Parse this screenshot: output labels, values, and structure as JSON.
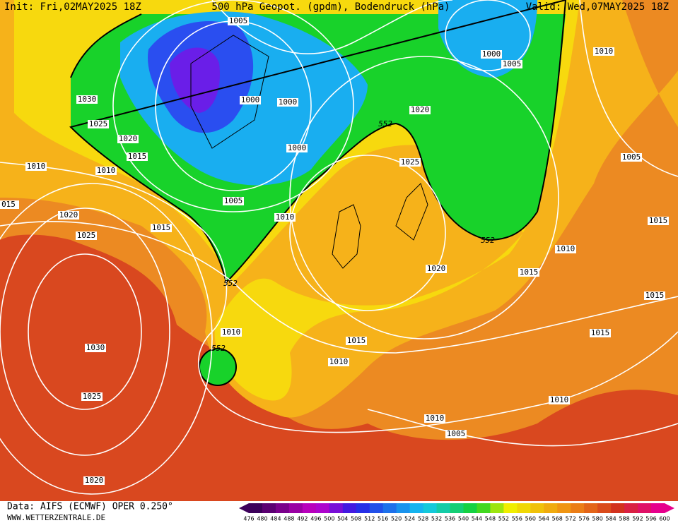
{
  "header": {
    "init": "Init: Fri,02MAY2025 18Z",
    "title": "500 hPa Geopot. (gpdm), Bodendruck (hPa)",
    "valid": "Valid: Wed,07MAY2025 18Z"
  },
  "isobar_labels": [
    "1005",
    "1000",
    "1005",
    "1010",
    "1030",
    "1000",
    "1000",
    "1020",
    "1025",
    "1020",
    "1000",
    "1015",
    "1005",
    "1010",
    "1010",
    "1025",
    "015",
    "1005",
    "1020",
    "1010",
    "1015",
    "1015",
    "1025",
    "1010",
    "1020",
    "1015",
    "1015",
    "1010",
    "1015",
    "1015",
    "1030",
    "1010",
    "1010",
    "1025",
    "1010",
    "1005",
    "1020"
  ],
  "contour_labels": [
    "552",
    "552",
    "552",
    "552"
  ],
  "colorbar": {
    "labels": [
      476,
      480,
      484,
      488,
      492,
      496,
      500,
      504,
      508,
      512,
      516,
      520,
      524,
      528,
      532,
      536,
      540,
      544,
      548,
      552,
      556,
      560,
      564,
      568,
      572,
      576,
      580,
      584,
      588,
      592,
      596,
      600
    ]
  },
  "footer": {
    "source": "Data: AIFS (ECMWF) OPER 0.250°",
    "site": "WWW.WETTERZENTRALE.DE"
  }
}
